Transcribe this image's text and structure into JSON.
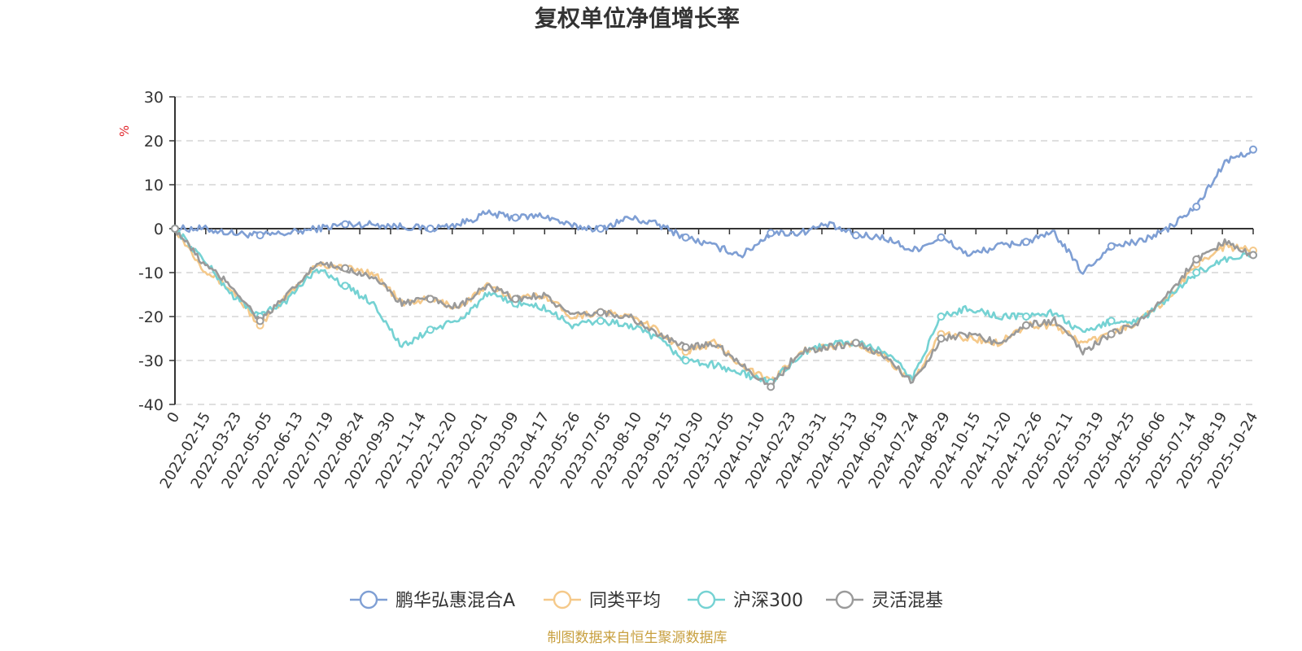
{
  "chart_data": {
    "type": "line",
    "title": "复权单位净值增长率",
    "ylabel": "%",
    "ylim": [
      -40,
      30
    ],
    "yticks": [
      30,
      20,
      10,
      0,
      -10,
      -20,
      -30,
      -40
    ],
    "grid": true,
    "legend_position": "bottom",
    "source": "制图数据来自恒生聚源数据库",
    "x_ticks": [
      "0",
      "2022-02-15",
      "2022-03-23",
      "2022-05-05",
      "2022-06-13",
      "2022-07-19",
      "2022-08-24",
      "2022-09-30",
      "2022-11-14",
      "2022-12-20",
      "2023-02-01",
      "2023-03-09",
      "2023-04-17",
      "2023-05-26",
      "2023-07-05",
      "2023-08-10",
      "2023-09-15",
      "2023-10-30",
      "2023-12-05",
      "2024-01-10",
      "2024-02-23",
      "2024-03-31",
      "2024-05-13",
      "2024-06-19",
      "2024-07-24",
      "2024-08-29",
      "2024-10-15",
      "2024-11-20",
      "2024-12-26",
      "2025-02-11",
      "2025-03-19",
      "2025-04-25",
      "2025-06-06",
      "2025-07-14",
      "2025-08-19",
      "2025-10-24"
    ],
    "series": [
      {
        "name": "鹏华弘惠混合A",
        "color": "#7f9fd4",
        "values": [
          0,
          0,
          -1,
          -1.5,
          -1,
          0,
          1,
          1,
          0.5,
          0,
          1,
          3.5,
          2.5,
          3,
          0.5,
          0,
          2.5,
          1,
          -2,
          -4,
          -6,
          -1,
          -1,
          1,
          -1.5,
          -2,
          -5,
          -2,
          -6,
          -4,
          -3,
          -1,
          -10,
          -4,
          -3,
          0,
          5,
          15,
          18
        ]
      },
      {
        "name": "同类平均",
        "color": "#f5c98a",
        "values": [
          0,
          -9,
          -14,
          -22,
          -15,
          -8,
          -9,
          -10,
          -17,
          -16,
          -18,
          -13,
          -16,
          -15,
          -20,
          -19,
          -20,
          -23,
          -28,
          -26,
          -31,
          -35,
          -28,
          -27,
          -26,
          -29,
          -35,
          -24,
          -25,
          -26,
          -22,
          -22,
          -26,
          -24,
          -21,
          -16,
          -8,
          -4,
          -5
        ]
      },
      {
        "name": "沪深300",
        "color": "#75d2d3",
        "values": [
          0,
          -7,
          -15,
          -20,
          -16,
          -9,
          -13,
          -17,
          -27,
          -23,
          -21,
          -15,
          -17,
          -18,
          -22,
          -21,
          -22,
          -25,
          -30,
          -31,
          -33,
          -35,
          -29,
          -26,
          -26,
          -28,
          -34,
          -20,
          -18,
          -20,
          -20,
          -19,
          -24,
          -21,
          -21,
          -16,
          -10,
          -7,
          -6
        ]
      },
      {
        "name": "灵活混基",
        "color": "#9a9a9a",
        "values": [
          0,
          -8,
          -13,
          -21,
          -15,
          -8,
          -9,
          -11,
          -17,
          -16,
          -18,
          -13,
          -16,
          -15,
          -20,
          -19,
          -20,
          -24,
          -27,
          -26,
          -31,
          -36,
          -28,
          -27,
          -26,
          -29,
          -35,
          -25,
          -24,
          -26,
          -22,
          -21,
          -28,
          -24,
          -21,
          -15,
          -7,
          -3,
          -6
        ]
      }
    ]
  }
}
